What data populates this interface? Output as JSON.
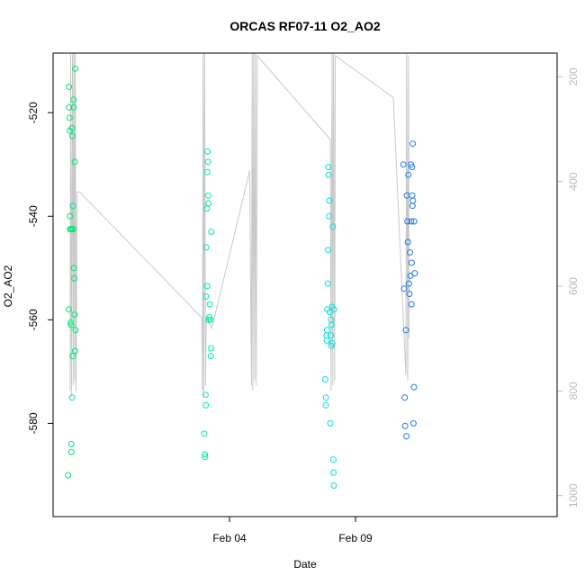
{
  "chart_data": {
    "type": "scatter",
    "title": "ORCAS RF07-11 O2_AO2",
    "xlabel": "Date",
    "ylabel": "O2_AO2",
    "x_range": [
      0,
      20
    ],
    "x_ticks": [
      {
        "label": "Feb 04",
        "x": 7
      },
      {
        "label": "Feb 09",
        "x": 12
      }
    ],
    "y_range": [
      -598,
      -508.5
    ],
    "y_ticks": [
      {
        "label": "-520",
        "y": -520
      },
      {
        "label": "-540",
        "y": -540
      },
      {
        "label": "-560",
        "y": -560
      },
      {
        "label": "-580",
        "y": -580
      }
    ],
    "right_axis": {
      "range": [
        1040,
        155
      ],
      "ticks": [
        {
          "label": "200",
          "v": 200
        },
        {
          "label": "400",
          "v": 400
        },
        {
          "label": "600",
          "v": 600
        },
        {
          "label": "800",
          "v": 800
        },
        {
          "label": "1000",
          "v": 1000
        }
      ],
      "color": "#bbbbbb"
    },
    "line_color": "#c8c8c8",
    "line_path": [
      [
        0.67,
        800
      ],
      [
        0.7,
        150
      ],
      [
        0.73,
        810
      ],
      [
        0.77,
        140
      ],
      [
        0.8,
        790
      ],
      [
        0.83,
        120
      ],
      [
        0.86,
        780
      ],
      [
        0.88,
        150
      ],
      [
        0.91,
        800
      ],
      [
        0.95,
        420
      ],
      [
        1.05,
        420
      ],
      [
        5.9,
        660
      ],
      [
        5.93,
        800
      ],
      [
        5.95,
        150
      ],
      [
        5.98,
        810
      ],
      [
        6.01,
        140
      ],
      [
        6.05,
        790
      ],
      [
        6.08,
        660
      ],
      [
        6.3,
        680
      ],
      [
        7.8,
        380
      ],
      [
        7.87,
        790
      ],
      [
        7.9,
        150
      ],
      [
        7.93,
        800
      ],
      [
        7.96,
        140
      ],
      [
        8.0,
        780
      ],
      [
        8.03,
        150
      ],
      [
        8.06,
        790
      ],
      [
        8.1,
        160
      ],
      [
        11.0,
        320
      ],
      [
        11.03,
        800
      ],
      [
        11.07,
        150
      ],
      [
        11.1,
        790
      ],
      [
        11.13,
        140
      ],
      [
        11.17,
        780
      ],
      [
        11.2,
        160
      ],
      [
        13.5,
        240
      ],
      [
        14.0,
        770
      ],
      [
        14.03,
        150
      ],
      [
        14.07,
        780
      ],
      [
        14.1,
        160
      ],
      [
        14.13,
        700
      ]
    ],
    "series": [
      {
        "color": "#00e676",
        "points": [
          [
            0.6,
            -590
          ],
          [
            0.62,
            -558
          ],
          [
            0.63,
            -515
          ],
          [
            0.64,
            -519
          ],
          [
            0.65,
            -521
          ],
          [
            0.66,
            -523.5
          ],
          [
            0.67,
            -540
          ],
          [
            0.68,
            -542.5
          ],
          [
            0.69,
            -542.5
          ],
          [
            0.7,
            -560.5
          ],
          [
            0.71,
            -561
          ],
          [
            0.72,
            -584
          ],
          [
            0.73,
            -585.5
          ],
          [
            0.74,
            -542.5
          ],
          [
            0.75,
            -523
          ],
          [
            0.76,
            -575
          ],
          [
            0.77,
            -524.5
          ],
          [
            0.78,
            -567
          ],
          [
            0.79,
            -538
          ],
          [
            0.8,
            -542.5
          ],
          [
            0.81,
            -517.5
          ],
          [
            0.82,
            -519
          ],
          [
            0.83,
            -550
          ],
          [
            0.84,
            -552
          ],
          [
            0.85,
            -559
          ],
          [
            0.86,
            -529.5
          ],
          [
            0.87,
            -566
          ],
          [
            0.88,
            -511.5
          ],
          [
            0.89,
            -562
          ]
        ]
      },
      {
        "color": "#00e7a8",
        "points": [
          [
            6.0,
            -582
          ],
          [
            6.02,
            -586
          ],
          [
            6.03,
            -586.5
          ],
          [
            6.05,
            -574.5
          ],
          [
            6.06,
            -576.5
          ],
          [
            6.07,
            -555.5
          ],
          [
            6.08,
            -546
          ],
          [
            6.1,
            -538.5
          ],
          [
            6.11,
            -553.5
          ],
          [
            6.12,
            -531.5
          ],
          [
            6.13,
            -527.5
          ],
          [
            6.15,
            -529.5
          ],
          [
            6.16,
            -536
          ],
          [
            6.17,
            -537.5
          ],
          [
            6.18,
            -560
          ],
          [
            6.2,
            -559.5
          ],
          [
            6.22,
            -557
          ],
          [
            6.25,
            -560
          ],
          [
            6.26,
            -567
          ],
          [
            6.27,
            -565.5
          ],
          [
            6.28,
            -543
          ]
        ]
      },
      {
        "color": "#00e0e0",
        "points": [
          [
            10.8,
            -571.5
          ],
          [
            10.82,
            -576.5
          ],
          [
            10.83,
            -575
          ],
          [
            10.85,
            -563
          ],
          [
            10.86,
            -564
          ],
          [
            10.87,
            -562
          ],
          [
            10.88,
            -558
          ],
          [
            10.9,
            -553
          ],
          [
            10.91,
            -546.5
          ],
          [
            10.92,
            -530.5
          ],
          [
            10.93,
            -532
          ],
          [
            10.95,
            -540
          ],
          [
            10.96,
            -537
          ],
          [
            10.98,
            -558.5
          ],
          [
            11.0,
            -580
          ],
          [
            11.02,
            -563
          ],
          [
            11.03,
            -560
          ],
          [
            11.04,
            -565
          ],
          [
            11.05,
            -561
          ],
          [
            11.07,
            -557.5
          ],
          [
            11.08,
            -564.5
          ],
          [
            11.1,
            -542
          ],
          [
            11.12,
            -587
          ],
          [
            11.13,
            -589.5
          ],
          [
            11.14,
            -592
          ],
          [
            11.15,
            -558
          ]
        ]
      },
      {
        "color": "#1e7ae6",
        "points": [
          [
            13.9,
            -530
          ],
          [
            13.93,
            -554
          ],
          [
            13.95,
            -575
          ],
          [
            13.97,
            -580.5
          ],
          [
            14.0,
            -562
          ],
          [
            14.02,
            -582.5
          ],
          [
            14.04,
            -536
          ],
          [
            14.06,
            -541
          ],
          [
            14.08,
            -545
          ],
          [
            14.1,
            -532
          ],
          [
            14.12,
            -553
          ],
          [
            14.14,
            -555
          ],
          [
            14.16,
            -547
          ],
          [
            14.18,
            -551.5
          ],
          [
            14.2,
            -530
          ],
          [
            14.21,
            -541
          ],
          [
            14.22,
            -557
          ],
          [
            14.23,
            -549
          ],
          [
            14.24,
            -530.5
          ],
          [
            14.25,
            -536
          ],
          [
            14.26,
            -538
          ],
          [
            14.27,
            -526
          ],
          [
            14.28,
            -537
          ],
          [
            14.3,
            -580
          ],
          [
            14.32,
            -573
          ],
          [
            14.33,
            -541
          ],
          [
            14.35,
            -551
          ]
        ]
      }
    ]
  }
}
